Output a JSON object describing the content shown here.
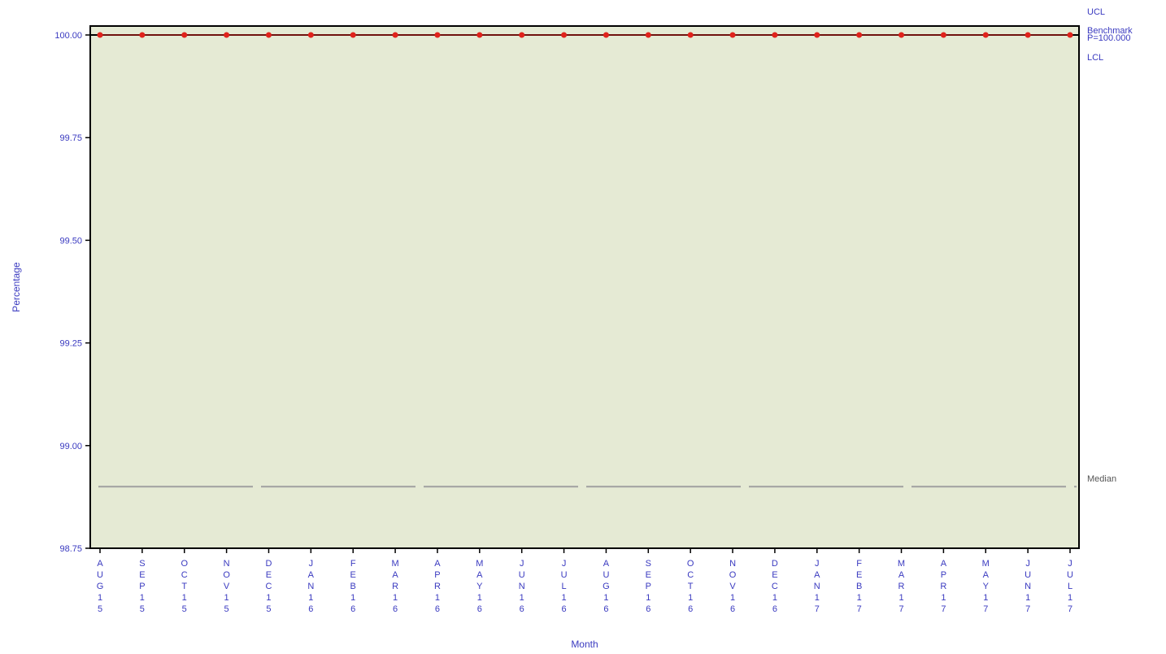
{
  "chart_data": {
    "type": "line",
    "title": "",
    "xlabel": "Month",
    "ylabel": "Percentage",
    "ylim": [
      98.75,
      100.0
    ],
    "yticks": [
      "98.75",
      "99.00",
      "99.25",
      "99.50",
      "99.75",
      "100.00"
    ],
    "categories": [
      "AUG15",
      "SEP15",
      "OCT15",
      "NOV15",
      "DEC15",
      "JAN16",
      "FEB16",
      "MAR16",
      "APR16",
      "MAY16",
      "JUN16",
      "JUL16",
      "AUG16",
      "SEP16",
      "OCT16",
      "NOV16",
      "DEC16",
      "JAN17",
      "FEB17",
      "MAR17",
      "APR17",
      "MAY17",
      "JUN17",
      "JUL17"
    ],
    "series": [
      {
        "values": [
          100,
          100,
          100,
          100,
          100,
          100,
          100,
          100,
          100,
          100,
          100,
          100,
          100,
          100,
          100,
          100,
          100,
          100,
          100,
          100,
          100,
          100,
          100,
          100
        ]
      }
    ],
    "reference_lines": {
      "ucl_label": "UCL",
      "benchmark_label": "Benchmark",
      "p_label": "P=100.000",
      "lcl_label": "LCL",
      "median_label": "Median",
      "center_value": 100.0,
      "median_value": 98.9
    },
    "colors": {
      "plot_background": "#e5ead4",
      "point": "#e0231c",
      "center_line": "#000000",
      "median_line": "#a0a0a0",
      "text": "#3a3ac0"
    },
    "grid": false,
    "legend": "none"
  }
}
